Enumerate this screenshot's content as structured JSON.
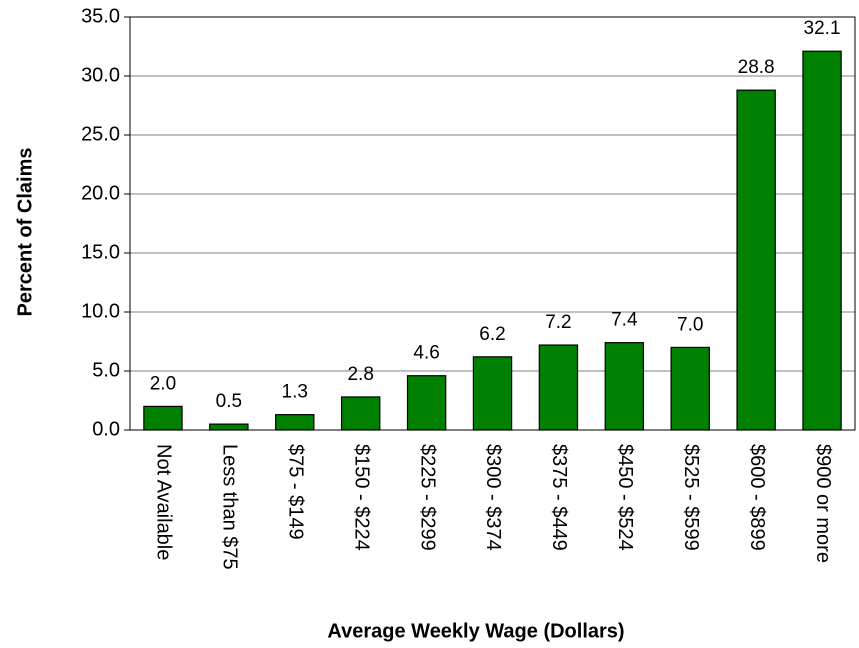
{
  "chart_data": {
    "type": "bar",
    "xlabel": "Average Weekly Wage (Dollars)",
    "ylabel": "Percent of Claims",
    "categories": [
      "Not Available",
      "Less than $75",
      "$75 - $149",
      "$150 - $224",
      "$225 - $299",
      "$300 - $374",
      "$375 - $449",
      "$450 - $524",
      "$525 - $599",
      "$600 - $899",
      "$900 or more"
    ],
    "values": [
      2.0,
      0.5,
      1.3,
      2.8,
      4.6,
      6.2,
      7.2,
      7.4,
      7.0,
      28.8,
      32.1
    ],
    "value_labels": [
      "2.0",
      "0.5",
      "1.3",
      "2.8",
      "4.6",
      "6.2",
      "7.2",
      "7.4",
      "7.0",
      "28.8",
      "32.1"
    ],
    "color": "#008000",
    "ylim": [
      0,
      35
    ],
    "yticks": [
      {
        "value": 0,
        "label": "0.0"
      },
      {
        "value": 5,
        "label": "5.0"
      },
      {
        "value": 10,
        "label": "10.0"
      },
      {
        "value": 15,
        "label": "15.0"
      },
      {
        "value": 20,
        "label": "20.0"
      },
      {
        "value": 25,
        "label": "25.0"
      },
      {
        "value": 30,
        "label": "30.0"
      },
      {
        "value": 35,
        "label": "35.0"
      }
    ],
    "grid": true
  }
}
